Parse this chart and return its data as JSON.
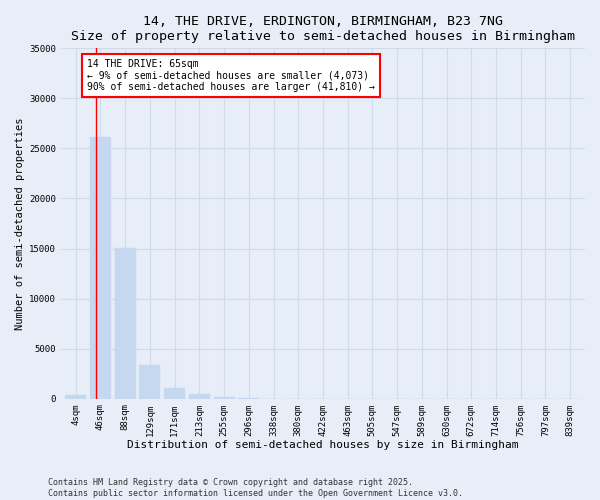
{
  "title_line1": "14, THE DRIVE, ERDINGTON, BIRMINGHAM, B23 7NG",
  "title_line2": "Size of property relative to semi-detached houses in Birmingham",
  "xlabel": "Distribution of semi-detached houses by size in Birmingham",
  "ylabel": "Number of semi-detached properties",
  "categories": [
    "4sqm",
    "46sqm",
    "88sqm",
    "129sqm",
    "171sqm",
    "213sqm",
    "255sqm",
    "296sqm",
    "338sqm",
    "380sqm",
    "422sqm",
    "463sqm",
    "505sqm",
    "547sqm",
    "589sqm",
    "630sqm",
    "672sqm",
    "714sqm",
    "756sqm",
    "797sqm",
    "839sqm"
  ],
  "values": [
    350,
    26100,
    15100,
    3350,
    1050,
    450,
    150,
    30,
    0,
    0,
    0,
    0,
    0,
    0,
    0,
    0,
    0,
    0,
    0,
    0,
    0
  ],
  "bar_color": "#c5d8f0",
  "bar_edgecolor": "#c5d8f0",
  "vline_x": 0.82,
  "vline_color": "red",
  "annotation_text": "14 THE DRIVE: 65sqm\n← 9% of semi-detached houses are smaller (4,073)\n90% of semi-detached houses are larger (41,810) →",
  "annotation_box_color": "white",
  "annotation_box_edgecolor": "red",
  "ylim": [
    0,
    35000
  ],
  "yticks": [
    0,
    5000,
    10000,
    15000,
    20000,
    25000,
    30000,
    35000
  ],
  "background_color": "#e8eef8",
  "plot_background": "#e8eef8",
  "grid_color": "#d0daea",
  "footnote": "Contains HM Land Registry data © Crown copyright and database right 2025.\nContains public sector information licensed under the Open Government Licence v3.0.",
  "title_fontsize": 9.5,
  "subtitle_fontsize": 8.5,
  "xlabel_fontsize": 8,
  "ylabel_fontsize": 7.5,
  "tick_fontsize": 6.5,
  "annotation_fontsize": 7,
  "footnote_fontsize": 6
}
